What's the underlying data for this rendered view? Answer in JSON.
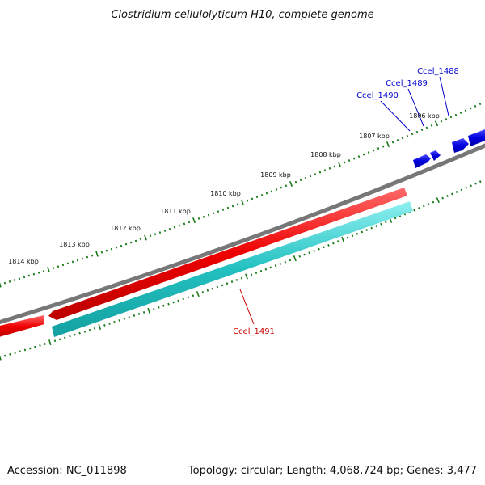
{
  "title": "Clostridium cellulolyticum H10, complete genome",
  "footer": {
    "accession": "Accession: NC_011898",
    "summary": "Topology: circular; Length: 4,068,724 bp; Genes: 3,477"
  },
  "colors": {
    "backbone": "#777777",
    "tick": "#1a7a1a",
    "forward_gene": "#0000dd",
    "cds": "#ee0000",
    "cds_product": "#22c0c0",
    "red_label": "#cc0000",
    "blue_label": "#0000cc"
  },
  "scale": {
    "unit": "kbp",
    "labels": [
      "1806 kbp",
      "1807 kbp",
      "1808 kbp",
      "1809 kbp",
      "1810 kbp",
      "1811 kbp",
      "1812 kbp",
      "1813 kbp",
      "1814 kbp"
    ]
  },
  "features": [
    {
      "name": "Ccel_1488",
      "strand": "forward",
      "type": "gene"
    },
    {
      "name": "Ccel_1489",
      "strand": "forward",
      "type": "gene"
    },
    {
      "name": "Ccel_1490",
      "strand": "forward",
      "type": "gene"
    },
    {
      "name": "Ccel_1491",
      "strand": "reverse",
      "type": "CDS"
    }
  ]
}
